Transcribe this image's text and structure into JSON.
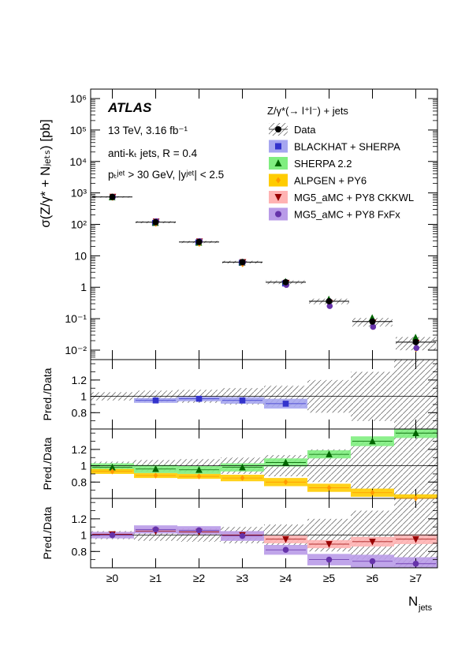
{
  "chart_data": {
    "type": "scatter",
    "experiment": "ATLAS",
    "info_lines": [
      "13 TeV, 3.16 fb⁻¹",
      "anti-kₜ jets, R = 0.4",
      "pₜʲᵉᵗ > 30 GeV, |yʲᵉᵗ| < 2.5"
    ],
    "legend_title": "Z/γ*(→ l⁺l⁻) + jets",
    "legend_placement": "top-right",
    "categories": [
      "≥0",
      "≥1",
      "≥2",
      "≥3",
      "≥4",
      "≥5",
      "≥6",
      "≥7"
    ],
    "xlabel": "N",
    "xlabel_sub": "jets",
    "ylabel": "σ(Z/γ* + Nⱼₑₜₛ) [pb]",
    "ratio_label": "Pred./Data",
    "yscale": "log",
    "ylim": [
      0.005,
      2000000
    ],
    "y_tick_labels": [
      "10⁶",
      "10⁵",
      "10⁴",
      "10³",
      "10²",
      "10",
      "1",
      "10⁻¹",
      "10⁻²"
    ],
    "y_tick_values": [
      1000000,
      100000,
      10000,
      1000,
      100,
      10,
      1,
      0.1,
      0.01
    ],
    "data": {
      "name": "Data",
      "color": "#000000",
      "values": [
        745,
        117,
        27.5,
        6.3,
        1.45,
        0.36,
        0.081,
        0.018
      ],
      "rel_unc": [
        0.05,
        0.07,
        0.08,
        0.1,
        0.13,
        0.2,
        0.3,
        0.45
      ]
    },
    "series": [
      {
        "name": "BLACKHAT + SHERPA",
        "color": "#3333cc",
        "band": "#a6a6f0",
        "marker": "square",
        "panel": 1,
        "ratio": [
          null,
          0.95,
          0.97,
          0.95,
          0.91,
          null,
          null,
          null
        ],
        "ratio_unc": [
          0,
          0.03,
          0.03,
          0.04,
          0.06,
          0,
          0,
          0
        ]
      },
      {
        "name": "SHERPA 2.2",
        "color": "#006600",
        "band": "#80ee80",
        "marker": "triangle-up",
        "panel": 2,
        "ratio": [
          0.98,
          0.96,
          0.95,
          0.98,
          1.04,
          1.14,
          1.3,
          1.4
        ],
        "ratio_unc": [
          0.05,
          0.05,
          0.05,
          0.05,
          0.05,
          0.05,
          0.06,
          0.06
        ]
      },
      {
        "name": "ALPGEN + PY6",
        "color": "#ff9900",
        "band": "#ffcc00",
        "marker": "diamond",
        "panel": 2,
        "ratio": [
          0.93,
          0.88,
          0.87,
          0.85,
          0.8,
          0.73,
          0.67,
          0.6
        ],
        "ratio_unc": [
          0.03,
          0.03,
          0.03,
          0.04,
          0.05,
          0.05,
          0.05,
          0.05
        ]
      },
      {
        "name": "MG5_aMC + PY8 CKKWL",
        "color": "#990000",
        "band": "#ffb3b3",
        "marker": "triangle-down",
        "panel": 3,
        "ratio": [
          1.01,
          1.05,
          1.04,
          1.0,
          0.95,
          0.89,
          0.92,
          0.95
        ],
        "ratio_unc": [
          0.03,
          0.03,
          0.03,
          0.04,
          0.05,
          0.05,
          0.06,
          0.06
        ]
      },
      {
        "name": "MG5_aMC + PY8 FxFx",
        "color": "#6633aa",
        "band": "#b99be8",
        "marker": "circle",
        "panel": 3,
        "ratio": [
          1.0,
          1.07,
          1.06,
          0.99,
          0.82,
          0.7,
          0.68,
          0.65
        ],
        "ratio_unc": [
          0.04,
          0.05,
          0.05,
          0.06,
          0.06,
          0.07,
          0.08,
          0.08
        ]
      }
    ],
    "ratio_ylim": [
      0.6,
      1.45
    ],
    "ratio_tick_labels": [
      "1.2",
      "1",
      "0.8"
    ],
    "ratio_tick_values": [
      1.2,
      1.0,
      0.8
    ]
  }
}
